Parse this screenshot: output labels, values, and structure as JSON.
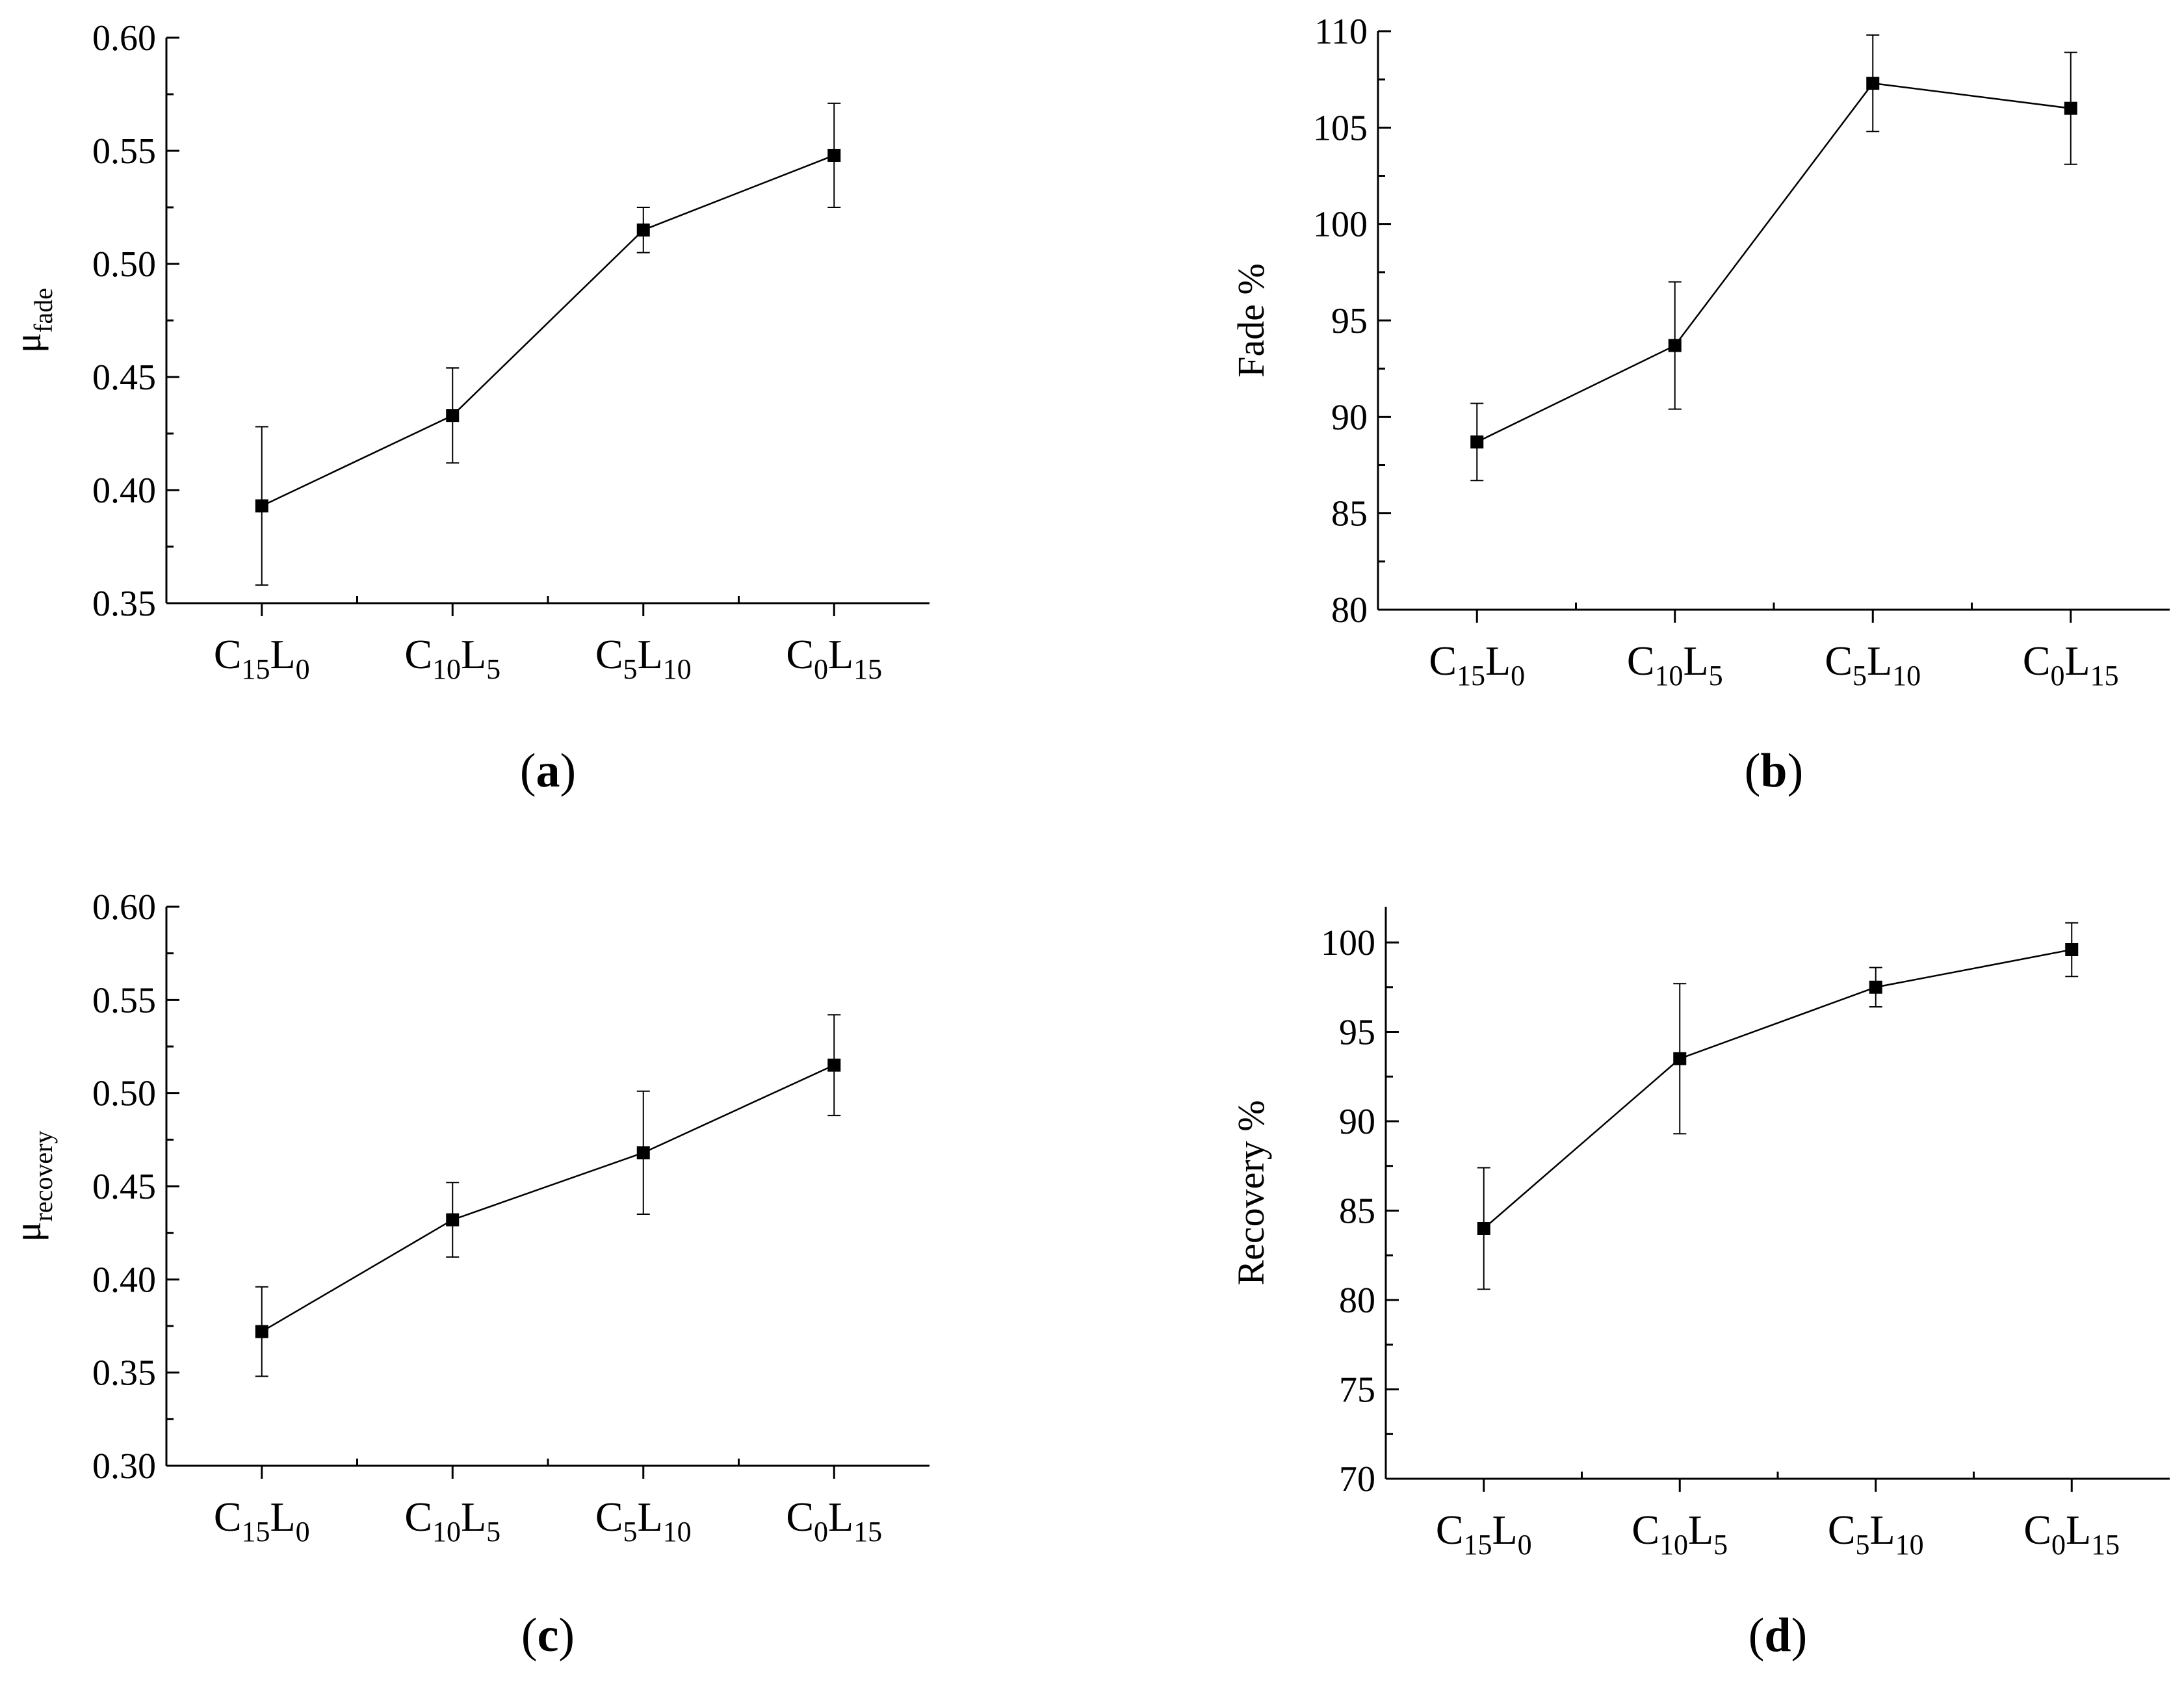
{
  "chart_data": [
    {
      "id": "a",
      "type": "line",
      "panel_label": "a",
      "ylabel": {
        "main": "μ",
        "sub": "fade"
      },
      "categories": [
        {
          "main1": "C",
          "sub1": "15",
          "main2": "L",
          "sub2": "0"
        },
        {
          "main1": "C",
          "sub1": "10",
          "main2": "L",
          "sub2": "5"
        },
        {
          "main1": "C",
          "sub1": "5",
          "main2": "L",
          "sub2": "10"
        },
        {
          "main1": "C",
          "sub1": "0",
          "main2": "L",
          "sub2": "15"
        }
      ],
      "values": [
        0.393,
        0.433,
        0.515,
        0.548
      ],
      "errors": [
        0.035,
        0.021,
        0.01,
        0.023
      ],
      "ylim": [
        0.35,
        0.6
      ],
      "yticks": [
        "0.35",
        "0.40",
        "0.45",
        "0.50",
        "0.55",
        "0.60"
      ],
      "y_decimals": 2
    },
    {
      "id": "b",
      "type": "line",
      "panel_label": "b",
      "ylabel": {
        "main": "Fade %",
        "sub": ""
      },
      "categories": [
        {
          "main1": "C",
          "sub1": "15",
          "main2": "L",
          "sub2": "0"
        },
        {
          "main1": "C",
          "sub1": "10",
          "main2": "L",
          "sub2": "5"
        },
        {
          "main1": "C",
          "sub1": "5",
          "main2": "L",
          "sub2": "10"
        },
        {
          "main1": "C",
          "sub1": "0",
          "main2": "L",
          "sub2": "15"
        }
      ],
      "values": [
        88.7,
        93.7,
        107.3,
        106.0
      ],
      "errors": [
        2.0,
        3.3,
        2.5,
        2.9
      ],
      "ylim": [
        80,
        110
      ],
      "yticks": [
        "80",
        "85",
        "90",
        "95",
        "100",
        "105",
        "110"
      ],
      "y_decimals": 0
    },
    {
      "id": "c",
      "type": "line",
      "panel_label": "c",
      "ylabel": {
        "main": "μ",
        "sub": "recovery"
      },
      "categories": [
        {
          "main1": "C",
          "sub1": "15",
          "main2": "L",
          "sub2": "0"
        },
        {
          "main1": "C",
          "sub1": "10",
          "main2": "L",
          "sub2": "5"
        },
        {
          "main1": "C",
          "sub1": "5",
          "main2": "L",
          "sub2": "10"
        },
        {
          "main1": "C",
          "sub1": "0",
          "main2": "L",
          "sub2": "15"
        }
      ],
      "values": [
        0.372,
        0.432,
        0.468,
        0.515
      ],
      "errors": [
        0.024,
        0.02,
        0.033,
        0.027
      ],
      "ylim": [
        0.3,
        0.6
      ],
      "yticks": [
        "0.30",
        "0.35",
        "0.40",
        "0.45",
        "0.50",
        "0.55",
        "0.60"
      ],
      "y_decimals": 2
    },
    {
      "id": "d",
      "type": "line",
      "panel_label": "d",
      "ylabel": {
        "main": "Recovery %",
        "sub": ""
      },
      "categories": [
        {
          "main1": "C",
          "sub1": "15",
          "main2": "L",
          "sub2": "0"
        },
        {
          "main1": "C",
          "sub1": "10",
          "main2": "L",
          "sub2": "5"
        },
        {
          "main1": "C",
          "sub1": "5",
          "main2": "L",
          "sub2": "10"
        },
        {
          "main1": "C",
          "sub1": "0",
          "main2": "L",
          "sub2": "15"
        }
      ],
      "values": [
        84.0,
        93.5,
        97.5,
        99.6
      ],
      "errors": [
        3.4,
        4.2,
        1.1,
        1.5
      ],
      "ylim": [
        70,
        102
      ],
      "yticks": [
        "70",
        "75",
        "80",
        "85",
        "90",
        "95",
        "100"
      ],
      "y_decimals": 0
    }
  ]
}
